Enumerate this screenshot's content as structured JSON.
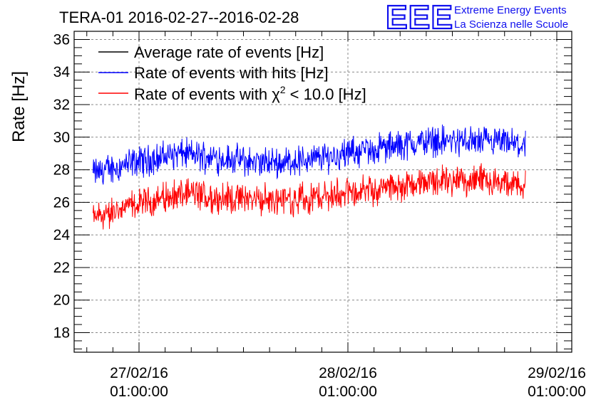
{
  "chart_data": {
    "type": "line",
    "title": "TERA-01 2016-02-27--2016-02-28",
    "ylabel": "Rate [Hz]",
    "xlabel": "",
    "ylim": [
      16.8,
      36.5
    ],
    "y_ticks": [
      18,
      20,
      22,
      24,
      26,
      28,
      30,
      32,
      34,
      36
    ],
    "grid": true,
    "x_ticks": [
      {
        "date": "27/02/16",
        "time": "01:00:00"
      },
      {
        "date": "28/02/16",
        "time": "01:00:00"
      },
      {
        "date": "29/02/16",
        "time": "01:00:00"
      }
    ],
    "legend_position": "top-left",
    "series": [
      {
        "name": "Average rate of events [Hz]",
        "color": "#000000",
        "t": [],
        "values": []
      },
      {
        "name": "Rate of events with hits [Hz]",
        "color": "#0000ff",
        "t": [
          -0.22,
          0.0,
          0.2,
          0.4,
          0.6,
          0.8,
          1.0,
          1.2,
          1.4,
          1.65,
          1.85
        ],
        "values": [
          27.8,
          28.5,
          29.0,
          28.7,
          28.4,
          28.6,
          29.0,
          29.4,
          29.8,
          29.7,
          29.5
        ],
        "noise_amplitude": 1.0
      },
      {
        "name": "Rate of events with χ2 < 10.0 [Hz]",
        "name_main": "Rate of events with χ",
        "name_sup": "2",
        "name_tail": " < 10.0 [Hz]",
        "color": "#ff0000",
        "t": [
          -0.22,
          0.0,
          0.2,
          0.4,
          0.6,
          0.8,
          1.0,
          1.2,
          1.4,
          1.65,
          1.85
        ],
        "values": [
          25.0,
          25.9,
          26.5,
          26.3,
          26.2,
          26.2,
          26.6,
          26.9,
          27.3,
          27.3,
          27.0
        ],
        "noise_amplitude": 1.0
      }
    ]
  },
  "logo": {
    "mark": "EEE",
    "line1": "Extreme Energy Events",
    "line2": "La Scienza nelle Scuole",
    "color": "#1010ee"
  }
}
